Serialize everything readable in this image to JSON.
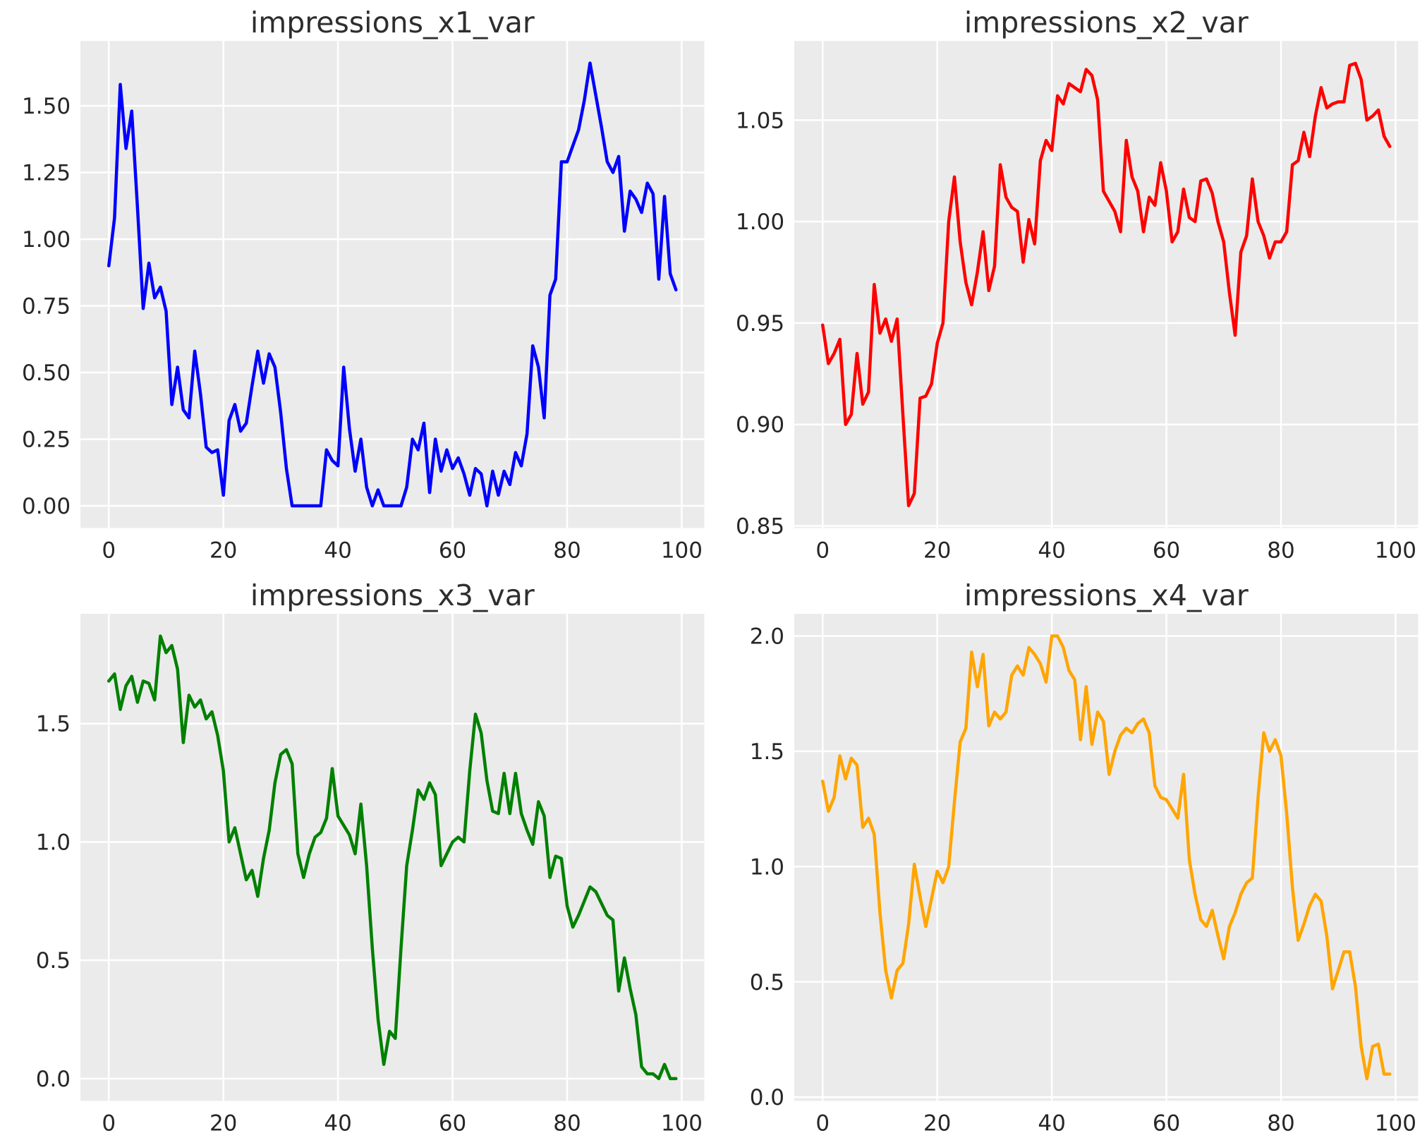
{
  "figure": {
    "background": "#ffffff",
    "plot_background": "#ebebeb",
    "grid_color": "#ffffff",
    "tick_label_color": "#262626",
    "title_color": "#2e2e2e"
  },
  "chart_data": [
    {
      "type": "line",
      "title": "impressions_x1_var",
      "color": "#0000ff",
      "grid": true,
      "legend": null,
      "x_start": 0,
      "x_step": 1,
      "xlim": [
        -4.95,
        103.95
      ],
      "ylim": [
        -0.083,
        1.743
      ],
      "xticks": [
        {
          "value": 0,
          "label": "0"
        },
        {
          "value": 20,
          "label": "20"
        },
        {
          "value": 40,
          "label": "40"
        },
        {
          "value": 60,
          "label": "60"
        },
        {
          "value": 80,
          "label": "80"
        },
        {
          "value": 100,
          "label": "100"
        }
      ],
      "yticks": [
        {
          "value": 0.0,
          "label": "0.00"
        },
        {
          "value": 0.25,
          "label": "0.25"
        },
        {
          "value": 0.5,
          "label": "0.50"
        },
        {
          "value": 0.75,
          "label": "0.75"
        },
        {
          "value": 1.0,
          "label": "1.00"
        },
        {
          "value": 1.25,
          "label": "1.25"
        },
        {
          "value": 1.5,
          "label": "1.50"
        }
      ],
      "values": [
        0.9,
        1.08,
        1.58,
        1.34,
        1.48,
        1.12,
        0.74,
        0.91,
        0.78,
        0.82,
        0.73,
        0.38,
        0.52,
        0.36,
        0.33,
        0.58,
        0.42,
        0.22,
        0.2,
        0.21,
        0.04,
        0.32,
        0.38,
        0.28,
        0.31,
        0.45,
        0.58,
        0.46,
        0.57,
        0.52,
        0.35,
        0.14,
        0.0,
        0.0,
        0.0,
        0.0,
        0.0,
        0.0,
        0.21,
        0.17,
        0.15,
        0.52,
        0.29,
        0.13,
        0.25,
        0.07,
        0.0,
        0.06,
        0.0,
        0.0,
        0.0,
        0.0,
        0.07,
        0.25,
        0.21,
        0.31,
        0.05,
        0.25,
        0.13,
        0.21,
        0.14,
        0.18,
        0.12,
        0.04,
        0.14,
        0.12,
        0.0,
        0.13,
        0.04,
        0.13,
        0.08,
        0.2,
        0.15,
        0.27,
        0.6,
        0.52,
        0.33,
        0.79,
        0.85,
        1.29,
        1.29,
        1.35,
        1.41,
        1.52,
        1.66,
        1.54,
        1.42,
        1.29,
        1.25,
        1.31,
        1.03,
        1.18,
        1.15,
        1.1,
        1.21,
        1.17,
        0.85,
        1.16,
        0.87,
        0.81
      ]
    },
    {
      "type": "line",
      "title": "impressions_x2_var",
      "color": "#ff0000",
      "grid": true,
      "legend": null,
      "x_start": 0,
      "x_step": 1,
      "xlim": [
        -4.95,
        103.95
      ],
      "ylim": [
        0.849,
        1.089
      ],
      "xticks": [
        {
          "value": 0,
          "label": "0"
        },
        {
          "value": 20,
          "label": "20"
        },
        {
          "value": 40,
          "label": "40"
        },
        {
          "value": 60,
          "label": "60"
        },
        {
          "value": 80,
          "label": "80"
        },
        {
          "value": 100,
          "label": "100"
        }
      ],
      "yticks": [
        {
          "value": 0.85,
          "label": "0.85"
        },
        {
          "value": 0.9,
          "label": "0.90"
        },
        {
          "value": 0.95,
          "label": "0.95"
        },
        {
          "value": 1.0,
          "label": "1.00"
        },
        {
          "value": 1.05,
          "label": "1.05"
        }
      ],
      "values": [
        0.949,
        0.93,
        0.935,
        0.942,
        0.9,
        0.905,
        0.935,
        0.91,
        0.916,
        0.969,
        0.945,
        0.952,
        0.941,
        0.952,
        0.905,
        0.86,
        0.866,
        0.913,
        0.914,
        0.92,
        0.94,
        0.95,
        1.0,
        1.022,
        0.99,
        0.97,
        0.959,
        0.975,
        0.995,
        0.966,
        0.978,
        1.028,
        1.012,
        1.007,
        1.005,
        0.98,
        1.001,
        0.989,
        1.03,
        1.04,
        1.035,
        1.062,
        1.058,
        1.068,
        1.066,
        1.064,
        1.075,
        1.072,
        1.06,
        1.015,
        1.01,
        1.005,
        0.995,
        1.04,
        1.022,
        1.015,
        0.995,
        1.012,
        1.008,
        1.029,
        1.015,
        0.99,
        0.995,
        1.016,
        1.002,
        1.0,
        1.02,
        1.021,
        1.014,
        1.0,
        0.99,
        0.965,
        0.944,
        0.985,
        0.993,
        1.021,
        1.0,
        0.993,
        0.982,
        0.99,
        0.99,
        0.995,
        1.028,
        1.03,
        1.044,
        1.032,
        1.052,
        1.066,
        1.056,
        1.058,
        1.059,
        1.059,
        1.077,
        1.078,
        1.07,
        1.05,
        1.052,
        1.055,
        1.042,
        1.037
      ]
    },
    {
      "type": "line",
      "title": "impressions_x3_var",
      "color": "#008000",
      "grid": true,
      "legend": null,
      "x_start": 0,
      "x_step": 1,
      "xlim": [
        -4.95,
        103.95
      ],
      "ylim": [
        -0.094,
        1.964
      ],
      "xticks": [
        {
          "value": 0,
          "label": "0"
        },
        {
          "value": 20,
          "label": "20"
        },
        {
          "value": 40,
          "label": "40"
        },
        {
          "value": 60,
          "label": "60"
        },
        {
          "value": 80,
          "label": "80"
        },
        {
          "value": 100,
          "label": "100"
        }
      ],
      "yticks": [
        {
          "value": 0.0,
          "label": "0.0"
        },
        {
          "value": 0.5,
          "label": "0.5"
        },
        {
          "value": 1.0,
          "label": "1.0"
        },
        {
          "value": 1.5,
          "label": "1.5"
        }
      ],
      "values": [
        1.68,
        1.71,
        1.56,
        1.66,
        1.7,
        1.59,
        1.68,
        1.67,
        1.6,
        1.87,
        1.8,
        1.83,
        1.73,
        1.42,
        1.62,
        1.57,
        1.6,
        1.52,
        1.55,
        1.45,
        1.3,
        1.0,
        1.06,
        0.95,
        0.84,
        0.88,
        0.77,
        0.93,
        1.05,
        1.25,
        1.37,
        1.39,
        1.33,
        0.95,
        0.85,
        0.95,
        1.02,
        1.04,
        1.1,
        1.31,
        1.11,
        1.07,
        1.03,
        0.95,
        1.16,
        0.9,
        0.55,
        0.25,
        0.06,
        0.2,
        0.17,
        0.55,
        0.9,
        1.05,
        1.22,
        1.18,
        1.25,
        1.2,
        0.9,
        0.95,
        1.0,
        1.02,
        1.0,
        1.3,
        1.54,
        1.46,
        1.26,
        1.13,
        1.12,
        1.29,
        1.12,
        1.29,
        1.12,
        1.05,
        0.99,
        1.17,
        1.11,
        0.85,
        0.94,
        0.93,
        0.73,
        0.64,
        0.69,
        0.75,
        0.81,
        0.79,
        0.74,
        0.69,
        0.67,
        0.37,
        0.51,
        0.38,
        0.27,
        0.05,
        0.02,
        0.02,
        0.0,
        0.06,
        0.0,
        0.0
      ]
    },
    {
      "type": "line",
      "title": "impressions_x4_var",
      "color": "#ffa500",
      "grid": true,
      "legend": null,
      "x_start": 0,
      "x_step": 1,
      "xlim": [
        -4.95,
        103.95
      ],
      "ylim": [
        -0.016,
        2.096
      ],
      "xticks": [
        {
          "value": 0,
          "label": "0"
        },
        {
          "value": 20,
          "label": "20"
        },
        {
          "value": 40,
          "label": "40"
        },
        {
          "value": 60,
          "label": "60"
        },
        {
          "value": 80,
          "label": "80"
        },
        {
          "value": 100,
          "label": "100"
        }
      ],
      "yticks": [
        {
          "value": 0.0,
          "label": "0.0"
        },
        {
          "value": 0.5,
          "label": "0.5"
        },
        {
          "value": 1.0,
          "label": "1.0"
        },
        {
          "value": 1.5,
          "label": "1.5"
        },
        {
          "value": 2.0,
          "label": "2.0"
        }
      ],
      "values": [
        1.37,
        1.24,
        1.3,
        1.48,
        1.38,
        1.47,
        1.44,
        1.17,
        1.21,
        1.14,
        0.8,
        0.55,
        0.43,
        0.55,
        0.58,
        0.75,
        1.01,
        0.87,
        0.74,
        0.86,
        0.98,
        0.93,
        1.0,
        1.28,
        1.54,
        1.6,
        1.93,
        1.78,
        1.92,
        1.61,
        1.67,
        1.64,
        1.67,
        1.83,
        1.87,
        1.83,
        1.95,
        1.92,
        1.88,
        1.8,
        2.0,
        2.0,
        1.95,
        1.85,
        1.81,
        1.55,
        1.78,
        1.53,
        1.67,
        1.63,
        1.4,
        1.5,
        1.57,
        1.6,
        1.58,
        1.62,
        1.64,
        1.58,
        1.35,
        1.3,
        1.29,
        1.25,
        1.21,
        1.4,
        1.03,
        0.88,
        0.77,
        0.74,
        0.81,
        0.7,
        0.6,
        0.74,
        0.8,
        0.88,
        0.93,
        0.95,
        1.3,
        1.58,
        1.5,
        1.55,
        1.48,
        1.23,
        0.91,
        0.68,
        0.75,
        0.83,
        0.88,
        0.85,
        0.7,
        0.47,
        0.55,
        0.63,
        0.63,
        0.48,
        0.22,
        0.08,
        0.22,
        0.23,
        0.1,
        0.1
      ]
    }
  ]
}
